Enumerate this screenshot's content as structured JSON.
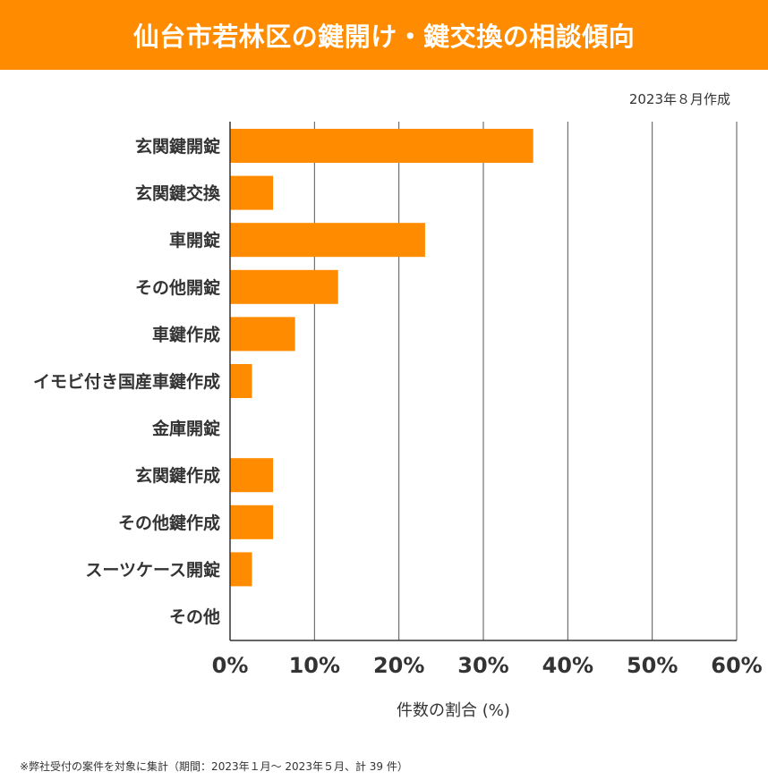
{
  "header": {
    "title": "仙台市若林区の鍵開け・鍵交換の相談傾向"
  },
  "date_note": "2023年８月作成",
  "footnote": "※弊社受付の案件を対象に集計（期間：2023年１月～ 2023年５月、計 39 件）",
  "colors": {
    "header": "#ff8c00",
    "bar": "#ff8c00",
    "grid": "#555555",
    "text": "#333333"
  },
  "chart_data": {
    "type": "bar",
    "orientation": "horizontal",
    "categories": [
      "玄関鍵開錠",
      "玄関鍵交換",
      "車開錠",
      "その他開錠",
      "車鍵作成",
      "イモビ付き国産車鍵作成",
      "金庫開錠",
      "玄関鍵作成",
      "その他鍵作成",
      "スーツケース開錠",
      "その他"
    ],
    "values": [
      35.9,
      5.1,
      23.1,
      12.8,
      7.7,
      2.6,
      0,
      5.1,
      5.1,
      2.6,
      0
    ],
    "xlabel": "件数の割合 (%)",
    "ylabel": "",
    "xlim": [
      0,
      60
    ],
    "xticks": [
      "0%",
      "10%",
      "20%",
      "30%",
      "40%",
      "50%",
      "60%"
    ],
    "grid": true
  }
}
